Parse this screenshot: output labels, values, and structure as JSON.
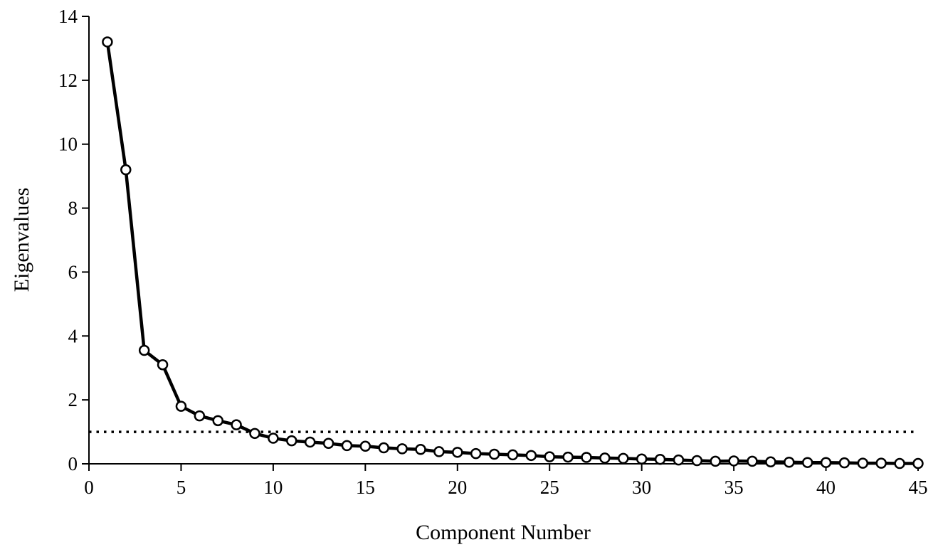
{
  "chart_data": {
    "type": "line",
    "title": "",
    "xlabel": "Component Number",
    "ylabel": "Eigenvalues",
    "xlim": [
      0,
      45
    ],
    "ylim": [
      0,
      14
    ],
    "xticks": [
      0,
      5,
      10,
      15,
      20,
      25,
      30,
      35,
      40,
      45
    ],
    "yticks": [
      0,
      2,
      4,
      6,
      8,
      10,
      12,
      14
    ],
    "grid": false,
    "legend": "none",
    "reference_line": {
      "y": 1,
      "style": "dotted"
    },
    "series": [
      {
        "marker": "open-circle",
        "x": [
          1,
          2,
          3,
          4,
          5,
          6,
          7,
          8,
          9,
          10,
          11,
          12,
          13,
          14,
          15,
          16,
          17,
          18,
          19,
          20,
          21,
          22,
          23,
          24,
          25,
          26,
          27,
          28,
          29,
          30,
          31,
          32,
          33,
          34,
          35,
          36,
          37,
          38,
          39,
          40,
          41,
          42,
          43,
          44,
          45
        ],
        "values": [
          13.2,
          9.2,
          3.55,
          3.1,
          1.8,
          1.5,
          1.35,
          1.22,
          0.95,
          0.8,
          0.72,
          0.68,
          0.64,
          0.57,
          0.55,
          0.5,
          0.47,
          0.45,
          0.38,
          0.36,
          0.32,
          0.3,
          0.28,
          0.26,
          0.22,
          0.21,
          0.2,
          0.18,
          0.17,
          0.15,
          0.14,
          0.12,
          0.1,
          0.08,
          0.09,
          0.08,
          0.06,
          0.05,
          0.04,
          0.04,
          0.03,
          0.02,
          0.02,
          0.01,
          0.01
        ]
      }
    ]
  }
}
